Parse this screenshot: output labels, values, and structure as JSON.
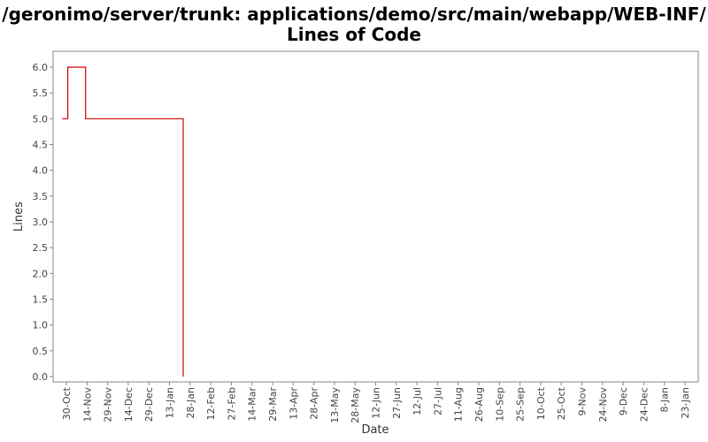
{
  "chart_data": {
    "type": "line",
    "title": "/geronimo/server/trunk: applications/demo/src/main/webapp/WEB-INF/",
    "subtitle": "Lines of Code",
    "xlabel": "Date",
    "ylabel": "Lines",
    "ylim": [
      0,
      6.2
    ],
    "yticks": [
      "0.0",
      "0.5",
      "1.0",
      "1.5",
      "2.0",
      "2.5",
      "3.0",
      "3.5",
      "4.0",
      "4.5",
      "5.0",
      "5.5",
      "6.0"
    ],
    "xticks": [
      "30-Oct",
      "14-Nov",
      "29-Nov",
      "14-Dec",
      "29-Dec",
      "13-Jan",
      "28-Jan",
      "12-Feb",
      "27-Feb",
      "14-Mar",
      "29-Mar",
      "13-Apr",
      "28-Apr",
      "13-May",
      "28-May",
      "12-Jun",
      "27-Jun",
      "12-Jul",
      "27-Jul",
      "11-Aug",
      "26-Aug",
      "10-Sep",
      "25-Sep",
      "10-Oct",
      "25-Oct",
      "9-Nov",
      "24-Nov",
      "9-Dec",
      "24-Dec",
      "8-Jan",
      "23-Jan"
    ],
    "step": true,
    "grid": false,
    "series": [
      {
        "color": "#cc0000",
        "points": [
          {
            "x": "27-Oct",
            "y": 5
          },
          {
            "x": "31-Oct",
            "y": 5
          },
          {
            "x": "31-Oct",
            "y": 6
          },
          {
            "x": "13-Nov",
            "y": 6
          },
          {
            "x": "13-Nov",
            "y": 5
          },
          {
            "x": "23-Jan",
            "y": 5
          },
          {
            "x": "23-Jan",
            "y": 0
          }
        ]
      }
    ]
  }
}
